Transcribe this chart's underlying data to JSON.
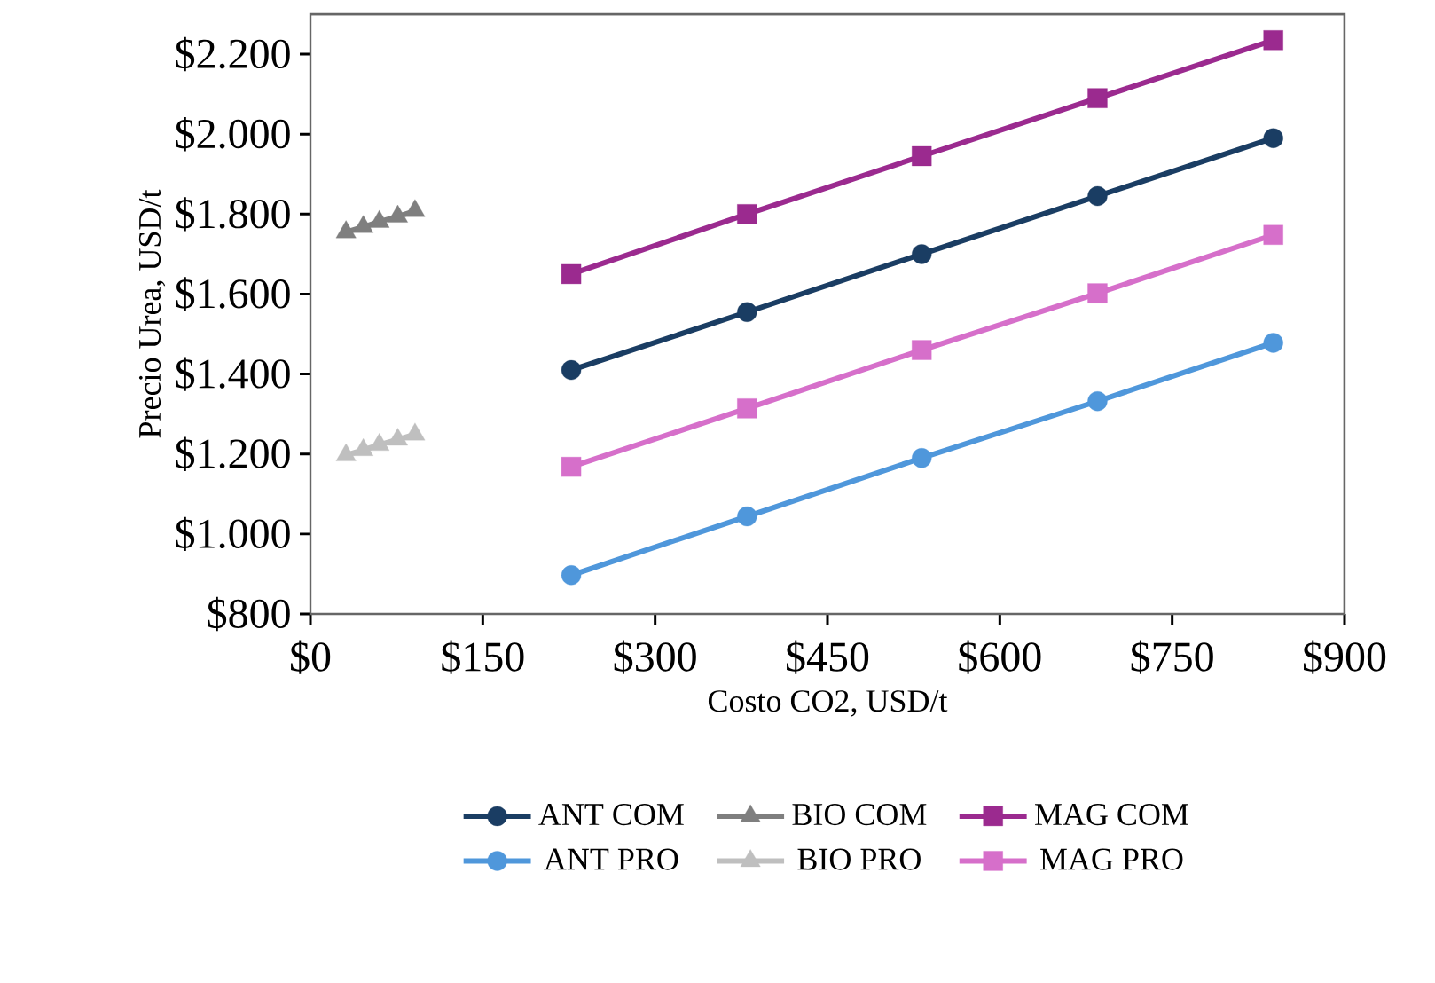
{
  "chart_data": {
    "type": "line",
    "xlabel": "Costo CO2, USD/t",
    "ylabel": "Precio Urea, USD/t",
    "xlim": [
      0,
      900
    ],
    "ylim": [
      800,
      2300
    ],
    "xticks": [
      {
        "value": 0,
        "label": "$0"
      },
      {
        "value": 150,
        "label": "$150"
      },
      {
        "value": 300,
        "label": "$300"
      },
      {
        "value": 450,
        "label": "$450"
      },
      {
        "value": 600,
        "label": "$600"
      },
      {
        "value": 750,
        "label": "$750"
      },
      {
        "value": 900,
        "label": "$900"
      }
    ],
    "yticks": [
      {
        "value": 800,
        "label": "$800"
      },
      {
        "value": 1000,
        "label": "$1.000"
      },
      {
        "value": 1200,
        "label": "$1.200"
      },
      {
        "value": 1400,
        "label": "$1.400"
      },
      {
        "value": 1600,
        "label": "$1.600"
      },
      {
        "value": 1800,
        "label": "$1.800"
      },
      {
        "value": 2000,
        "label": "$2.000"
      },
      {
        "value": 2200,
        "label": "$2.200"
      }
    ],
    "grid": false,
    "legend": "bottom",
    "series": [
      {
        "name": "ANT COM",
        "color": "#1a3d63",
        "marker": "circle",
        "x": [
          227,
          380,
          532,
          685,
          838
        ],
        "values": [
          1410,
          1555,
          1700,
          1845,
          1990
        ]
      },
      {
        "name": "BIO COM",
        "color": "#7f7f7f",
        "marker": "triangle",
        "x": [
          31,
          46,
          60,
          76,
          91
        ],
        "values": [
          1755,
          1768,
          1781,
          1794,
          1808
        ]
      },
      {
        "name": "MAG COM",
        "color": "#9b2a8f",
        "marker": "square",
        "x": [
          227,
          380,
          532,
          685,
          838
        ],
        "values": [
          1650,
          1800,
          1945,
          2090,
          2235
        ]
      },
      {
        "name": "ANT PRO",
        "color": "#4f97db",
        "marker": "circle",
        "x": [
          227,
          380,
          532,
          685,
          838
        ],
        "values": [
          897,
          1044,
          1190,
          1332,
          1478
        ]
      },
      {
        "name": "BIO PRO",
        "color": "#bfbfbf",
        "marker": "triangle",
        "x": [
          31,
          46,
          60,
          76,
          91
        ],
        "values": [
          1197,
          1210,
          1223,
          1236,
          1249
        ]
      },
      {
        "name": "MAG PRO",
        "color": "#d66fca",
        "marker": "square",
        "x": [
          227,
          380,
          532,
          685,
          838
        ],
        "values": [
          1168,
          1314,
          1460,
          1602,
          1748
        ]
      }
    ]
  }
}
